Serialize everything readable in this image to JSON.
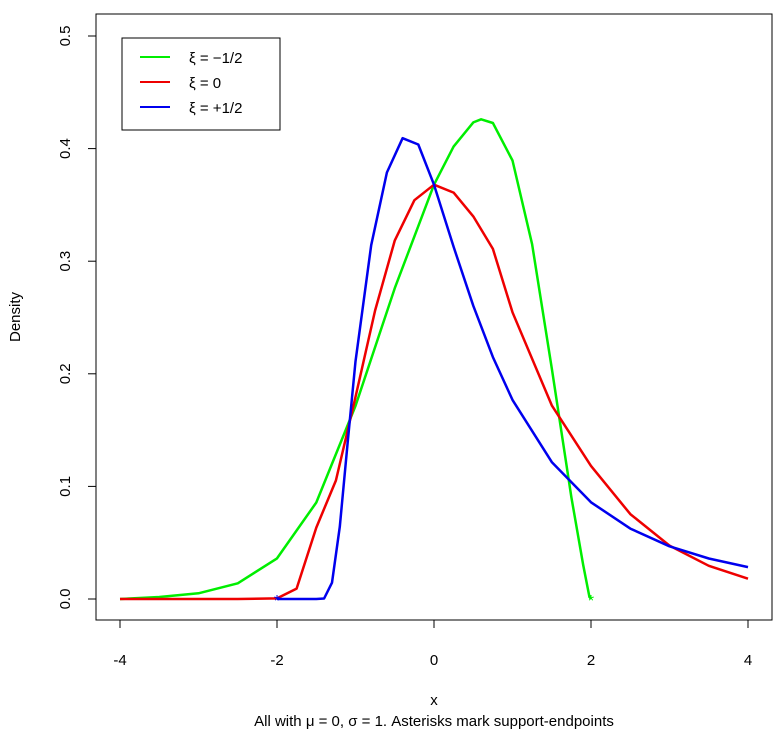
{
  "chart_data": {
    "type": "line",
    "title": "",
    "xlabel": "x",
    "subtitle": "All with μ = 0, σ = 1. Asterisks mark support-endpoints",
    "ylabel": "Density",
    "xlim": [
      -4,
      4
    ],
    "ylim": [
      0,
      0.5
    ],
    "x_ticks": [
      -4,
      -2,
      0,
      2,
      4
    ],
    "x_tick_labels": [
      "-4",
      "-2",
      "0",
      "2",
      "4"
    ],
    "y_ticks": [
      0.0,
      0.1,
      0.2,
      0.3,
      0.4,
      0.5
    ],
    "y_tick_labels": [
      "0.0",
      "0.1",
      "0.2",
      "0.3",
      "0.4",
      "0.5"
    ],
    "grid": false,
    "legend_position": "top-left",
    "series": [
      {
        "name": "ξ = −1/2",
        "color": "#00ee00",
        "x": [
          -4,
          -3.5,
          -3,
          -2.5,
          -2,
          -1.5,
          -1,
          -0.5,
          0,
          0.25,
          0.5,
          0.6,
          0.75,
          1,
          1.25,
          1.5,
          1.75,
          1.9,
          1.98,
          2
        ],
        "values": [
          0,
          0.0018,
          0.0051,
          0.0139,
          0.0361,
          0.0857,
          0.1715,
          0.2761,
          0.3679,
          0.4018,
          0.4233,
          0.426,
          0.4227,
          0.3894,
          0.3151,
          0.2048,
          0.0902,
          0.0302,
          0.002,
          0
        ],
        "endpoint": {
          "x": 2,
          "y": 0,
          "marker": "*"
        }
      },
      {
        "name": "ξ = 0",
        "color": "#ee0000",
        "x": [
          -4,
          -3,
          -2.5,
          -2,
          -1.75,
          -1.5,
          -1.25,
          -1,
          -0.75,
          -0.5,
          -0.25,
          0,
          0.25,
          0.5,
          0.75,
          1,
          1.5,
          2,
          2.5,
          3,
          3.5,
          4
        ],
        "values": [
          0,
          0,
          0.0,
          0.0005,
          0.0092,
          0.0634,
          0.1052,
          0.1794,
          0.2562,
          0.3185,
          0.3542,
          0.3679,
          0.3609,
          0.3398,
          0.3109,
          0.2546,
          0.1719,
          0.1182,
          0.0754,
          0.0474,
          0.0295,
          0.018
        ],
        "endpoint": null
      },
      {
        "name": "ξ = +1/2",
        "color": "#0000ee",
        "x": [
          -2,
          -1.5,
          -1.4,
          -1.3,
          -1.2,
          -1.1,
          -1.0,
          -0.8,
          -0.6,
          -0.4,
          -0.2,
          0,
          0.25,
          0.5,
          0.75,
          1,
          1.5,
          2,
          2.5,
          3,
          3.5,
          4
        ],
        "values": [
          0,
          0.0,
          0.0004,
          0.0145,
          0.0642,
          0.1384,
          0.211,
          0.3142,
          0.3788,
          0.4092,
          0.4036,
          0.3679,
          0.3128,
          0.2604,
          0.2148,
          0.1768,
          0.1216,
          0.0859,
          0.0625,
          0.0468,
          0.036,
          0.0283
        ],
        "endpoint": {
          "x": -2,
          "y": 0,
          "marker": "*"
        }
      }
    ]
  }
}
